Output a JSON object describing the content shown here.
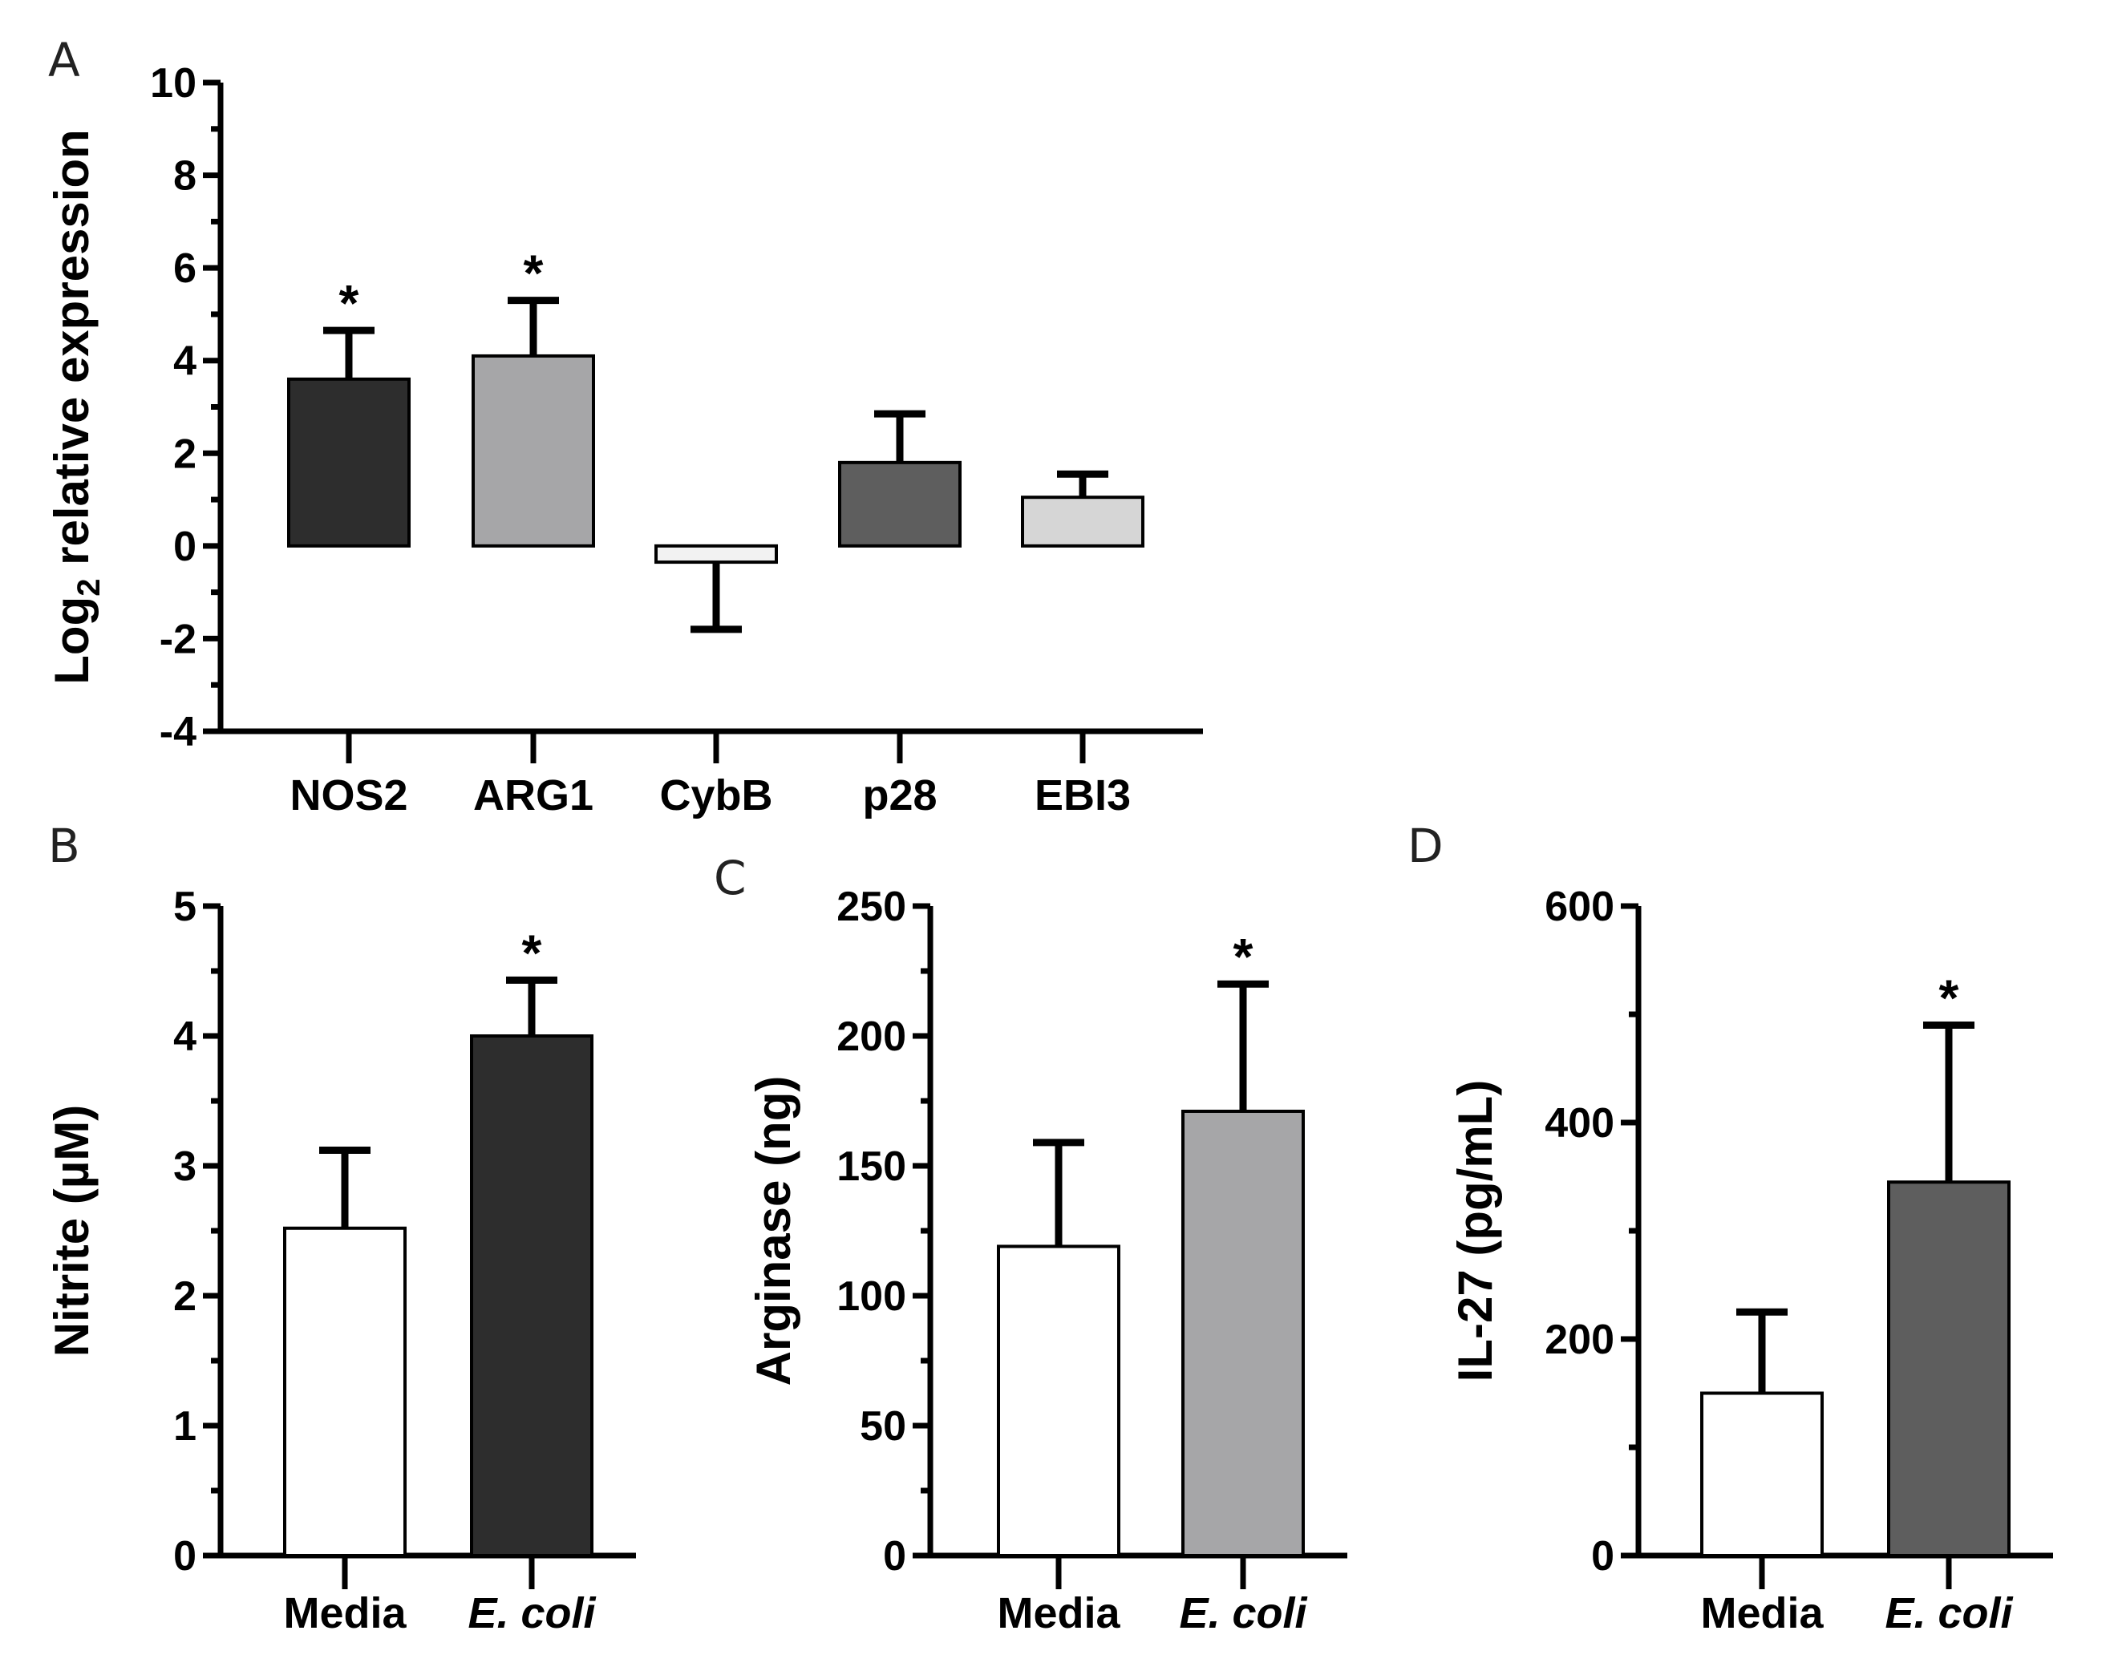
{
  "chart_data": [
    {
      "panel": "A",
      "type": "bar",
      "ylabel_main": "Log",
      "ylabel_sub": "2",
      "ylabel_rest": " relative expression",
      "ylim": [
        -4,
        10
      ],
      "yticks": [
        -4,
        -2,
        0,
        2,
        4,
        6,
        8,
        10
      ],
      "categories": [
        "NOS2",
        "ARG1",
        "CybB",
        "p28",
        "EBI3"
      ],
      "values": [
        3.6,
        4.1,
        -0.35,
        1.8,
        1.05
      ],
      "errors": [
        1.05,
        1.2,
        1.45,
        1.05,
        0.5
      ],
      "significance": [
        "*",
        "*",
        "",
        "",
        ""
      ],
      "colors": [
        "#2d2d2d",
        "#a6a6a8",
        "#f2f2f2",
        "#5e5e5e",
        "#d6d6d6"
      ]
    },
    {
      "panel": "B",
      "type": "bar",
      "ylabel": "Nitrite (µM)",
      "ylim": [
        0,
        5
      ],
      "yticks": [
        0,
        1,
        2,
        3,
        4,
        5
      ],
      "categories": [
        "Media",
        "E. coli"
      ],
      "values": [
        2.52,
        4.0
      ],
      "errors": [
        0.6,
        0.43
      ],
      "significance": [
        "",
        "*"
      ],
      "colors": [
        "#ffffff",
        "#2d2d2d"
      ]
    },
    {
      "panel": "C",
      "type": "bar",
      "ylabel": "Arginase (ng)",
      "ylim": [
        0,
        250
      ],
      "yticks": [
        0,
        50,
        100,
        150,
        200,
        250
      ],
      "categories": [
        "Media",
        "E. coli"
      ],
      "values": [
        119,
        171
      ],
      "errors": [
        40,
        49
      ],
      "significance": [
        "",
        "*"
      ],
      "colors": [
        "#ffffff",
        "#a6a6a8"
      ]
    },
    {
      "panel": "D",
      "type": "bar",
      "ylabel": "IL-27 (pg/mL)",
      "ylim": [
        0,
        600
      ],
      "yticks": [
        0,
        200,
        400,
        600
      ],
      "yminor": true,
      "categories": [
        "Media",
        "E. coli"
      ],
      "values": [
        150,
        345
      ],
      "errors": [
        75,
        145
      ],
      "significance": [
        "",
        "*"
      ],
      "colors": [
        "#ffffff",
        "#5e5e5e"
      ]
    }
  ]
}
